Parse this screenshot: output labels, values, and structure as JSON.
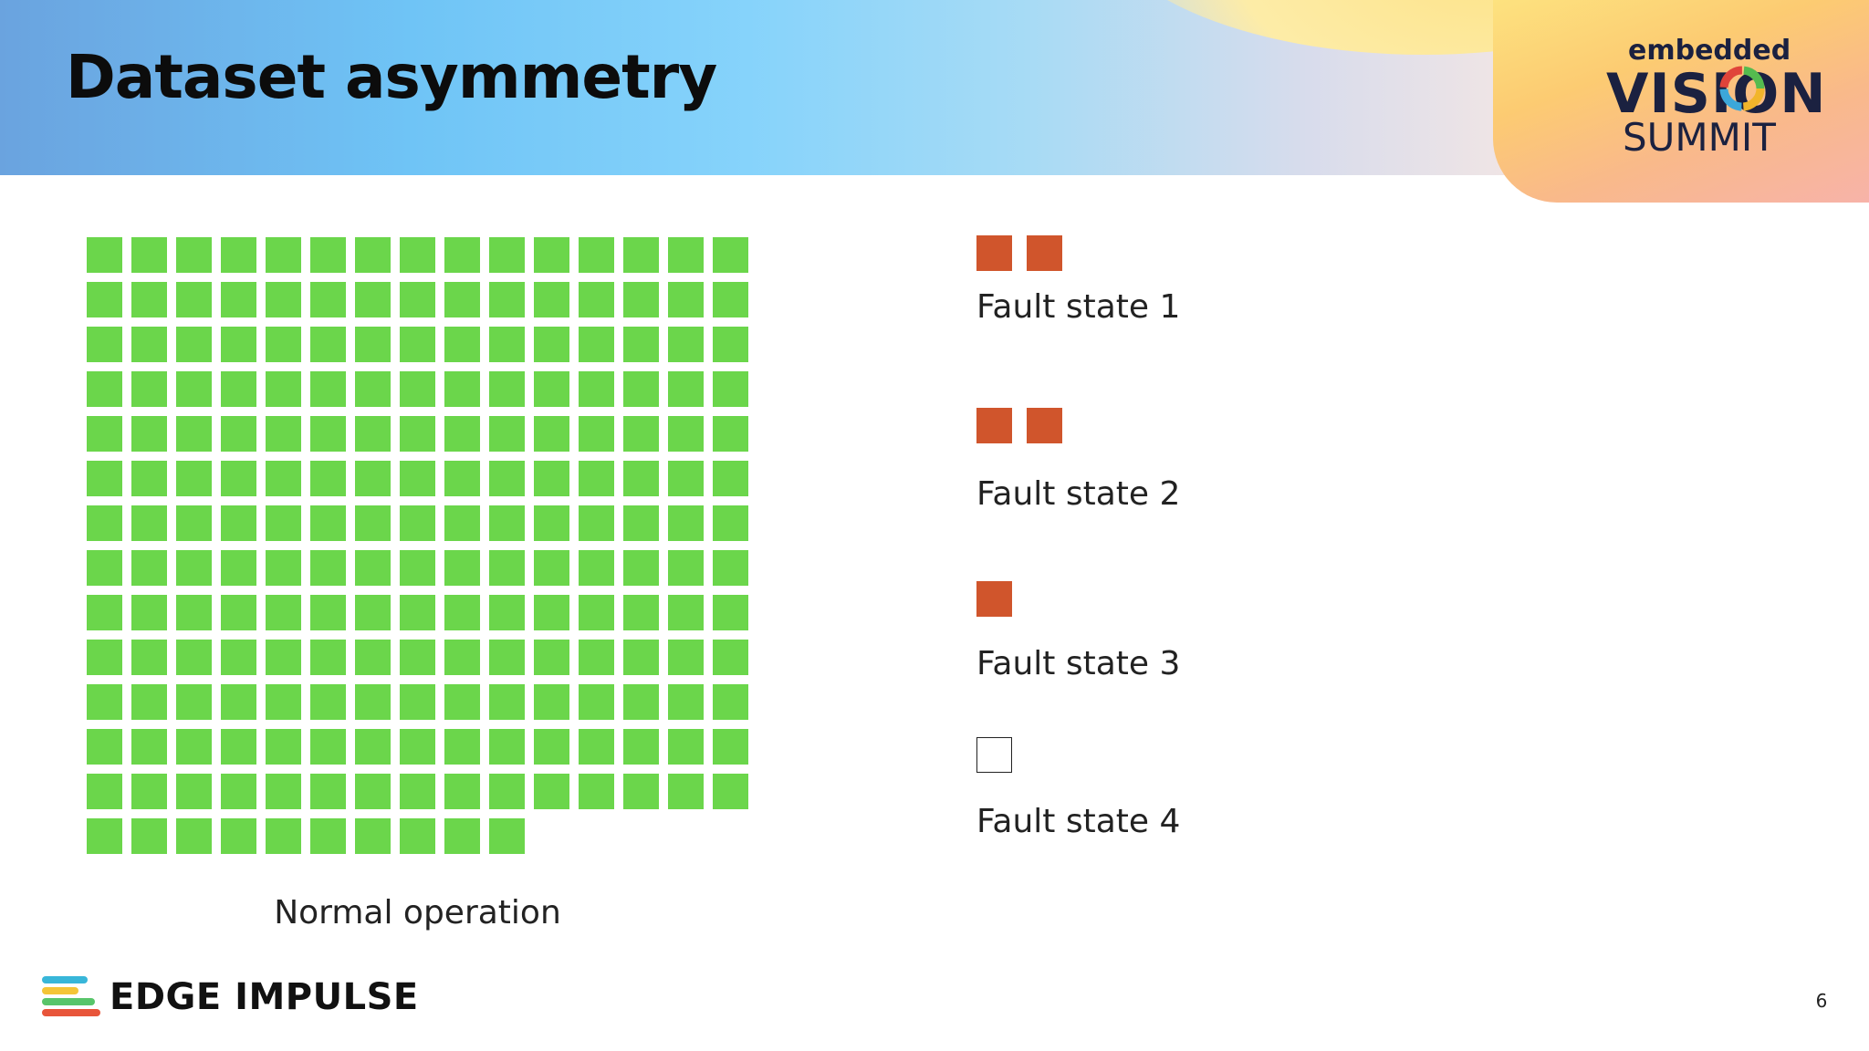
{
  "slide": {
    "title": "Dataset asymmetry",
    "page_number": "6"
  },
  "event_logo": {
    "line1": "embedded",
    "line2": "VISION",
    "line3": "SUMMIT"
  },
  "normal_operation": {
    "label": "Normal operation",
    "square_count": 205,
    "columns": 15,
    "color": "#6bd64b"
  },
  "fault_states": [
    {
      "label": "Fault state 1",
      "square_count": 2
    },
    {
      "label": "Fault state 2",
      "square_count": 2
    },
    {
      "label": "Fault state 3",
      "square_count": 1
    },
    {
      "label": "Fault state 4",
      "square_count": 0
    }
  ],
  "fault_color": "#d0552c",
  "company_logo": {
    "text": "EDGE IMPULSE",
    "bar_colors": [
      "#38b6d9",
      "#f4c537",
      "#58c56a",
      "#e8553a"
    ]
  }
}
